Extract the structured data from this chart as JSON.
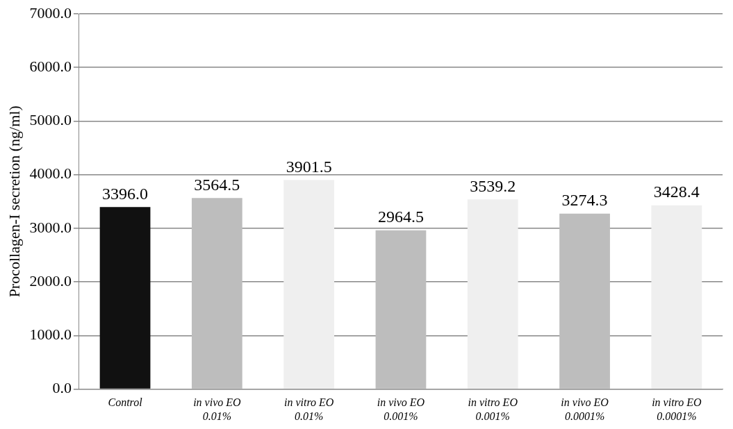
{
  "chart_data": {
    "type": "bar",
    "ylabel": "Procollagen-I secretion (ng/ml)",
    "categories": [
      "Control",
      "in vivo EO 0.01%",
      "in vitro EO 0.01%",
      "in vivo EO 0.001%",
      "in vitro EO 0.001%",
      "in vivo EO 0.0001%",
      "in vitro EO 0.0001%"
    ],
    "values": [
      3396.0,
      3564.5,
      3901.5,
      2964.5,
      3539.2,
      3274.3,
      3428.4
    ],
    "colors": [
      "#111111",
      "#bdbdbd",
      "#efefef",
      "#bdbdbd",
      "#efefef",
      "#bdbdbd",
      "#efefef"
    ],
    "value_labels": [
      "3396.0",
      "3564.5",
      "3901.5",
      "2964.5",
      "3539.2",
      "3274.3",
      "3428.4"
    ],
    "ylim": [
      0,
      7000
    ],
    "yticks": [
      {
        "value": 0,
        "label": "0.0"
      },
      {
        "value": 1000,
        "label": "1000.0"
      },
      {
        "value": 2000,
        "label": "2000.0"
      },
      {
        "value": 3000,
        "label": "3000.0"
      },
      {
        "value": 4000,
        "label": "4000.0"
      },
      {
        "value": 5000,
        "label": "5000.0"
      },
      {
        "value": 6000,
        "label": "6000.0"
      },
      {
        "value": 7000,
        "label": "7000.0"
      }
    ],
    "grid": "y",
    "legend": false
  }
}
